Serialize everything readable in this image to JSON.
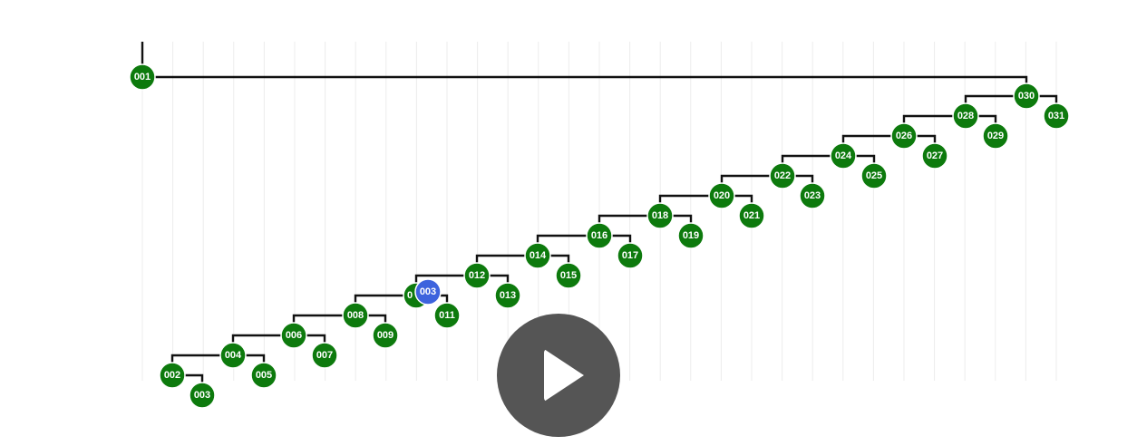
{
  "tree": {
    "nodes": [
      {
        "id": "001",
        "parent": null
      },
      {
        "id": "030",
        "parent": "001"
      },
      {
        "id": "031",
        "parent": "030"
      },
      {
        "id": "028",
        "parent": "030"
      },
      {
        "id": "029",
        "parent": "028"
      },
      {
        "id": "026",
        "parent": "028"
      },
      {
        "id": "027",
        "parent": "026"
      },
      {
        "id": "024",
        "parent": "026"
      },
      {
        "id": "025",
        "parent": "024"
      },
      {
        "id": "022",
        "parent": "024"
      },
      {
        "id": "023",
        "parent": "022"
      },
      {
        "id": "020",
        "parent": "022"
      },
      {
        "id": "021",
        "parent": "020"
      },
      {
        "id": "018",
        "parent": "020"
      },
      {
        "id": "019",
        "parent": "018"
      },
      {
        "id": "016",
        "parent": "018"
      },
      {
        "id": "017",
        "parent": "016"
      },
      {
        "id": "014",
        "parent": "016"
      },
      {
        "id": "015",
        "parent": "014"
      },
      {
        "id": "012",
        "parent": "014"
      },
      {
        "id": "013",
        "parent": "012"
      },
      {
        "id": "010",
        "parent": "012",
        "label": "0"
      },
      {
        "id": "011",
        "parent": "010"
      },
      {
        "id": "008",
        "parent": "010"
      },
      {
        "id": "009",
        "parent": "008"
      },
      {
        "id": "006",
        "parent": "008"
      },
      {
        "id": "007",
        "parent": "006"
      },
      {
        "id": "004",
        "parent": "006"
      },
      {
        "id": "005",
        "parent": "004"
      },
      {
        "id": "002",
        "parent": "004"
      },
      {
        "id": "003",
        "parent": "002"
      }
    ],
    "highlight": {
      "label": "003",
      "color": "#3d63dd"
    },
    "node_color": "#0d7a0d",
    "edge_color": "#111111"
  },
  "player": {
    "icon": "play-icon",
    "color": "#555555"
  }
}
